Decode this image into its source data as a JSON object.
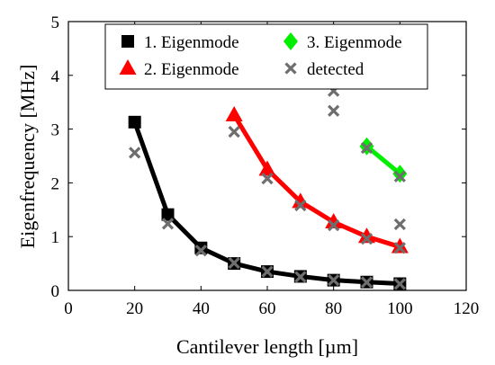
{
  "chart_data": {
    "type": "line",
    "xlabel": "Cantilever length [µm]",
    "ylabel": "Eigenfrequency [MHz]",
    "xlim": [
      0,
      120
    ],
    "ylim": [
      0,
      5
    ],
    "xticks": [
      0,
      20,
      40,
      60,
      80,
      100,
      120
    ],
    "yticks": [
      0,
      1,
      2,
      3,
      4,
      5
    ],
    "grid": false,
    "legend_position": "top",
    "series": [
      {
        "name": "1. Eigenmode",
        "marker": "square",
        "color": "#000000",
        "x": [
          20,
          30,
          40,
          50,
          60,
          70,
          80,
          90,
          100
        ],
        "y": [
          3.13,
          1.41,
          0.79,
          0.5,
          0.35,
          0.26,
          0.19,
          0.155,
          0.125
        ]
      },
      {
        "name": "2. Eigenmode",
        "marker": "triangle",
        "color": "#ff0000",
        "x": [
          50,
          60,
          70,
          80,
          90,
          100
        ],
        "y": [
          3.26,
          2.25,
          1.65,
          1.27,
          1.0,
          0.81
        ]
      },
      {
        "name": "3. Eigenmode",
        "marker": "diamond",
        "color": "#00ee00",
        "x": [
          90,
          100
        ],
        "y": [
          2.68,
          2.17
        ]
      },
      {
        "name": "detected",
        "marker": "x",
        "color": "#6e6e6e",
        "points": [
          [
            20,
            2.56
          ],
          [
            30,
            1.24
          ],
          [
            40,
            0.74
          ],
          [
            50,
            2.95
          ],
          [
            50,
            0.51
          ],
          [
            60,
            2.08
          ],
          [
            60,
            0.35
          ],
          [
            70,
            1.58
          ],
          [
            70,
            0.25
          ],
          [
            80,
            3.71
          ],
          [
            80,
            3.34
          ],
          [
            80,
            1.21
          ],
          [
            80,
            0.19
          ],
          [
            90,
            2.65
          ],
          [
            90,
            0.96
          ],
          [
            90,
            0.15
          ],
          [
            100,
            2.12
          ],
          [
            100,
            1.23
          ],
          [
            100,
            0.79
          ],
          [
            100,
            0.12
          ]
        ]
      }
    ]
  }
}
